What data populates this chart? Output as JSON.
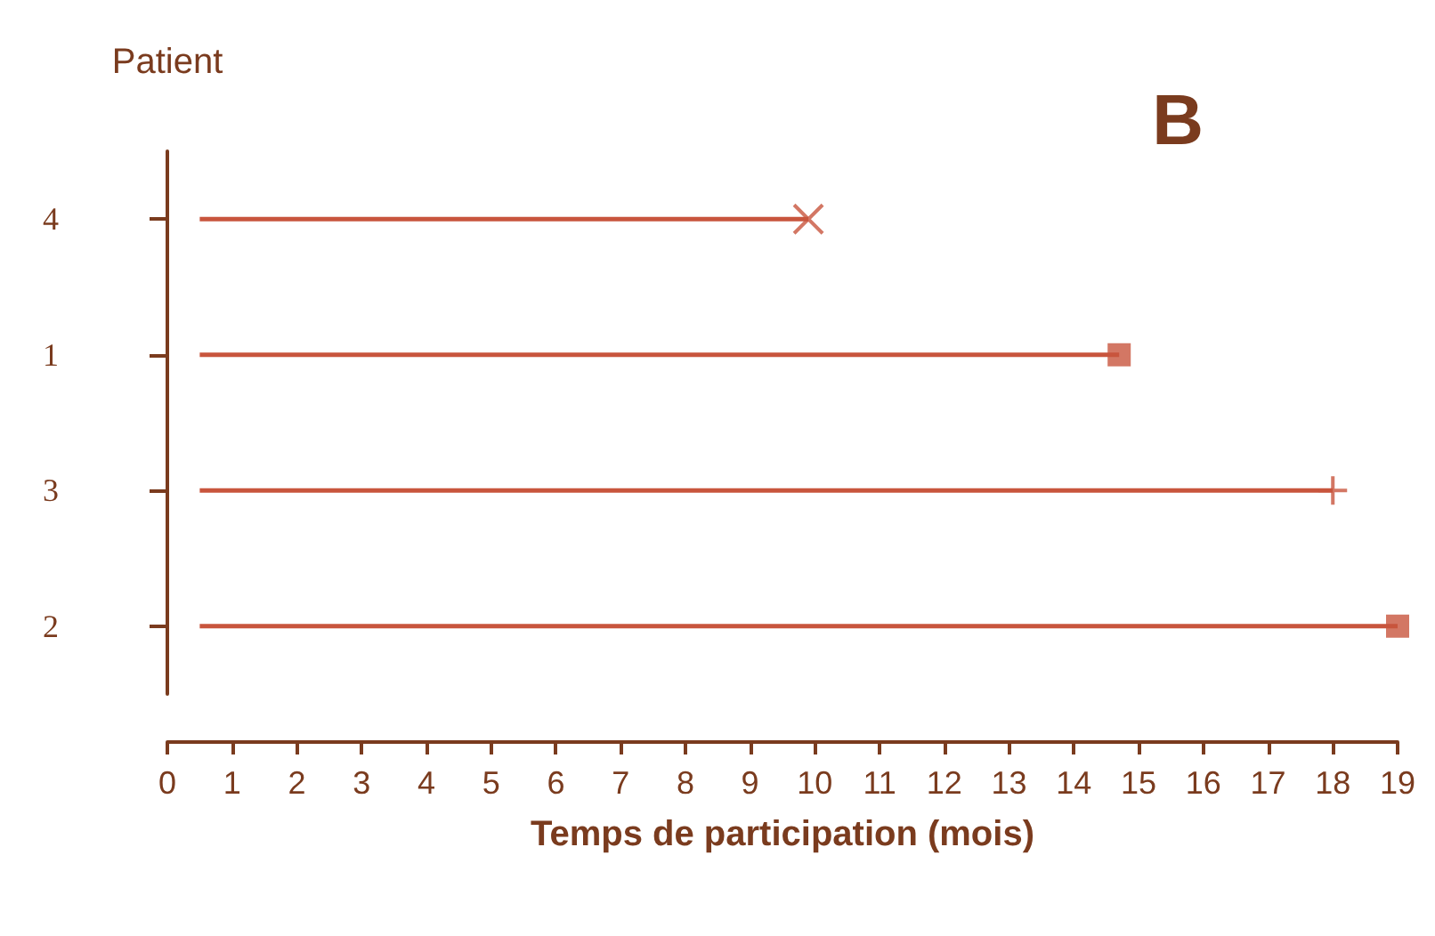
{
  "chart_data": {
    "type": "bar",
    "orientation": "horizontal",
    "ylabel": "Patient",
    "xlabel": "Temps de participation (mois)",
    "categories": [
      "4",
      "1",
      "3",
      "2"
    ],
    "xlim": [
      0,
      19
    ],
    "xticks": [
      0,
      1,
      2,
      3,
      4,
      5,
      6,
      7,
      8,
      9,
      10,
      11,
      12,
      13,
      14,
      15,
      16,
      17,
      18,
      19
    ],
    "series": [
      {
        "color": "#c8553d",
        "base": [
          0.5,
          0.5,
          0.5,
          0.5
        ],
        "values": [
          9.4,
          14.2,
          17.5,
          18.5
        ]
      },
      {
        "type": "scatter",
        "color": "#c8553d",
        "marker": "cross",
        "x": [
          "4"
        ],
        "values": [
          9.9
        ]
      },
      {
        "type": "scatter",
        "color": "#c8553d",
        "marker": "square",
        "x": [
          "1",
          "2"
        ],
        "values": [
          14.7,
          19
        ]
      },
      {
        "type": "scatter",
        "color": "#c8553d",
        "marker": "plus",
        "x": [
          "3"
        ],
        "values": [
          18
        ]
      }
    ],
    "annotations": [
      "B"
    ],
    "grid": false
  }
}
